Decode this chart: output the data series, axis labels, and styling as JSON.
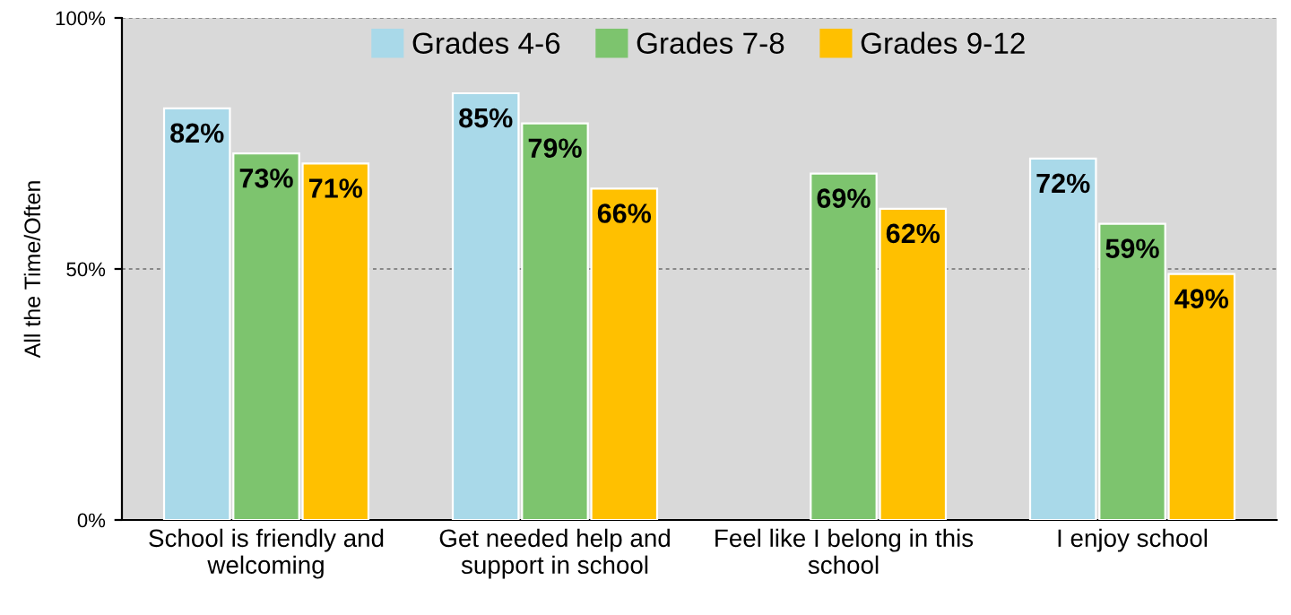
{
  "chart_data": {
    "type": "bar",
    "ylabel": "All the Time/Often",
    "categories": [
      "School is friendly and\nwelcoming",
      "Get needed help and\nsupport in school",
      "Feel like I belong in this\nschool",
      "I enjoy school"
    ],
    "series": [
      {
        "name": "Grades 4-6",
        "color": "#a9d9e9",
        "values": [
          82,
          85,
          null,
          72
        ],
        "value_labels": [
          "82%",
          "85%",
          null,
          "72%"
        ]
      },
      {
        "name": "Grades 7-8",
        "color": "#7dc46e",
        "values": [
          73,
          79,
          69,
          59
        ],
        "value_labels": [
          "73%",
          "79%",
          "69%",
          "59%"
        ]
      },
      {
        "name": "Grades 9-12",
        "color": "#ffc000",
        "values": [
          71,
          66,
          62,
          49
        ],
        "value_labels": [
          "71%",
          "66%",
          "62%",
          "49%"
        ]
      }
    ],
    "ylim": [
      0,
      100
    ],
    "yticks": [
      {
        "value": 0,
        "label": "0%"
      },
      {
        "value": 50,
        "label": "50%"
      },
      {
        "value": 100,
        "label": "100%"
      }
    ],
    "grid": "y",
    "legend": "top"
  }
}
